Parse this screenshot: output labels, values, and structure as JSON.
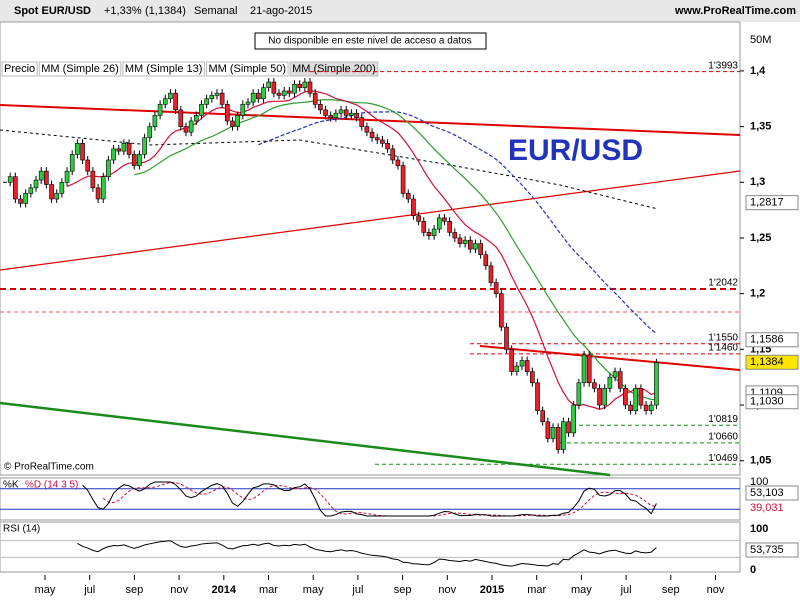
{
  "chart_data": {
    "type": "candlestick",
    "title": "Spot EUR/USD",
    "change": "+1,33%",
    "last": "(1,1384)",
    "period": "Semanal",
    "date": "21-ago-2015",
    "site": "www.ProRealTime.com",
    "notice": "No disponible en este nivel de acceso a datos",
    "volume_label": "50M",
    "watermark": "EUR/USD",
    "copyright": "© ProRealTime.com",
    "legend": [
      "Precio",
      "MM (Simple 26)",
      "MM (Simple 13)",
      "MM (Simple 50)",
      "MM (Simple 200)"
    ],
    "legend_colors": [
      "#000000",
      "#2e9e2e",
      "#d0103a",
      "#2233bb",
      "#000000"
    ],
    "values": [
      1.3,
      1.305,
      1.285,
      1.281,
      1.29,
      1.295,
      1.302,
      1.31,
      1.298,
      1.285,
      1.29,
      1.3,
      1.31,
      1.325,
      1.335,
      1.32,
      1.31,
      1.295,
      1.285,
      1.305,
      1.32,
      1.33,
      1.328,
      1.335,
      1.325,
      1.315,
      1.325,
      1.34,
      1.35,
      1.36,
      1.37,
      1.375,
      1.38,
      1.365,
      1.35,
      1.345,
      1.355,
      1.36,
      1.37,
      1.375,
      1.378,
      1.38,
      1.37,
      1.355,
      1.35,
      1.36,
      1.37,
      1.372,
      1.38,
      1.375,
      1.385,
      1.39,
      1.38,
      1.378,
      1.382,
      1.38,
      1.388,
      1.385,
      1.39,
      1.38,
      1.37,
      1.365,
      1.36,
      1.358,
      1.362,
      1.365,
      1.36,
      1.362,
      1.358,
      1.35,
      1.345,
      1.34,
      1.338,
      1.335,
      1.33,
      1.32,
      1.315,
      1.29,
      1.285,
      1.27,
      1.265,
      1.255,
      1.252,
      1.258,
      1.268,
      1.265,
      1.255,
      1.25,
      1.245,
      1.248,
      1.24,
      1.245,
      1.235,
      1.225,
      1.21,
      1.2,
      1.17,
      1.15,
      1.13,
      1.135,
      1.14,
      1.13,
      1.12,
      1.095,
      1.085,
      1.07,
      1.08,
      1.06,
      1.085,
      1.075,
      1.1,
      1.12,
      1.145,
      1.12,
      1.115,
      1.1,
      1.115,
      1.125,
      1.13,
      1.115,
      1.1,
      1.095,
      1.115,
      1.1,
      1.095,
      1.1,
      1.138
    ],
    "ylim": [
      1.0372,
      1.4439
    ],
    "yticks": [
      {
        "value": 1.4,
        "label": "1,4"
      },
      {
        "value": 1.35,
        "label": "1,35"
      },
      {
        "value": 1.3,
        "label": "1,3"
      },
      {
        "value": 1.25,
        "label": "1,25"
      },
      {
        "value": 1.2,
        "label": "1,2"
      },
      {
        "value": 1.15,
        "label": "1,15"
      },
      {
        "value": 1.1,
        "label": "1,1"
      },
      {
        "value": 1.05,
        "label": "1,05"
      }
    ],
    "levels": [
      {
        "value": 1.3993,
        "label": "1'3993"
      },
      {
        "value": 1.2042,
        "label": "1'2042"
      },
      {
        "value": 1.155,
        "label": "1'1550"
      },
      {
        "value": 1.146,
        "label": "1'1460"
      },
      {
        "value": 1.0819,
        "label": "1'0819"
      },
      {
        "value": 1.066,
        "label": "1'0660"
      },
      {
        "value": 1.0469,
        "label": "1'0469"
      }
    ],
    "price_tags": [
      {
        "value": 1.2817,
        "label": "1,2817"
      },
      {
        "value": 1.1586,
        "label": "1,1586"
      },
      {
        "value": 1.1384,
        "label": "1,1384"
      },
      {
        "value": 1.1109,
        "label": "1,1109"
      },
      {
        "value": 1.103,
        "label": "1,1030"
      }
    ],
    "x_labels": [
      "may",
      "jul",
      "sep",
      "nov",
      "2014",
      "mar",
      "may",
      "jul",
      "sep",
      "nov",
      "2015",
      "mar",
      "may",
      "jul",
      "sep",
      "nov"
    ],
    "stochastic": {
      "title": "%K",
      "title2": "%D (14 3 5)",
      "ytick": "100",
      "k_label": "53,103",
      "d_label": "39,031"
    },
    "rsi": {
      "title": "RSI (14)",
      "ytick_top": "100",
      "ytick_bottom": "0",
      "value_label": "53,735"
    }
  }
}
